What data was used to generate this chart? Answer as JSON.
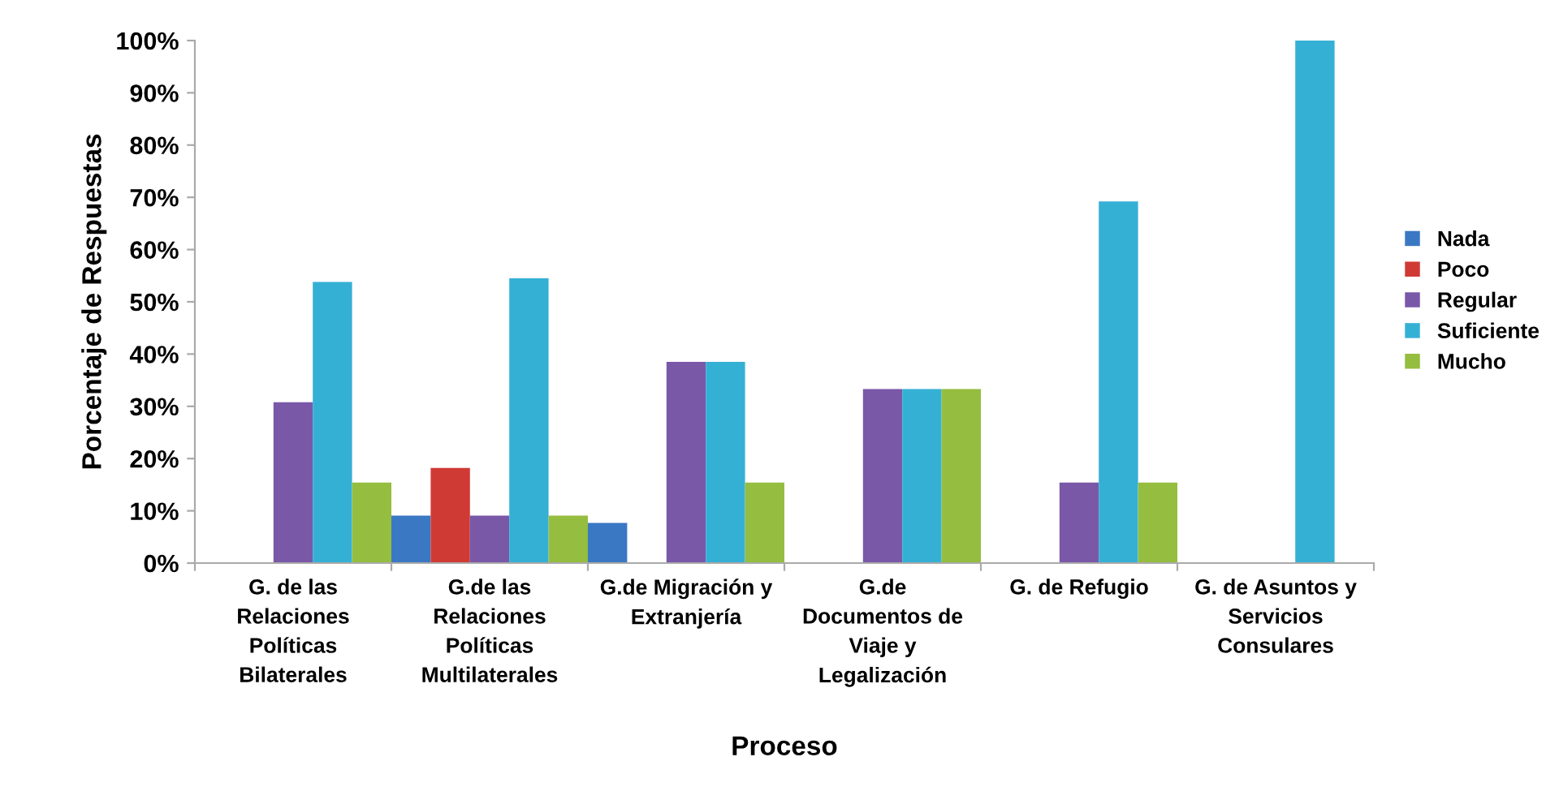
{
  "chart_data": {
    "type": "bar",
    "xlabel": "Proceso",
    "ylabel": "Porcentaje de Respuestas",
    "categories": [
      "G. de las Relaciones Políticas Bilaterales",
      "G.de las Relaciones Políticas Multilaterales",
      "G.de Migración y Extranjería",
      "G.de Documentos de Viaje y Legalización",
      "G. de Refugio",
      "G. de Asuntos y Servicios Consulares"
    ],
    "series": [
      {
        "name": "Nada",
        "color": "#3a78c3",
        "values": [
          0,
          9.1,
          7.7,
          0,
          0,
          0
        ]
      },
      {
        "name": "Poco",
        "color": "#d03a35",
        "values": [
          0,
          18.2,
          0,
          0,
          0,
          0
        ]
      },
      {
        "name": "Regular",
        "color": "#7a58a8",
        "values": [
          30.8,
          9.1,
          38.5,
          33.3,
          15.4,
          0
        ]
      },
      {
        "name": "Suficiente",
        "color": "#35b0d5",
        "values": [
          53.8,
          54.5,
          38.5,
          33.3,
          69.2,
          100
        ]
      },
      {
        "name": "Mucho",
        "color": "#95bd3f",
        "values": [
          15.4,
          9.1,
          15.4,
          33.3,
          15.4,
          0
        ]
      }
    ],
    "ylim": [
      0,
      100
    ],
    "yticks": [
      {
        "value": 0,
        "label": "0%"
      },
      {
        "value": 10,
        "label": "10%"
      },
      {
        "value": 20,
        "label": "20%"
      },
      {
        "value": 30,
        "label": "30%"
      },
      {
        "value": 40,
        "label": "40%"
      },
      {
        "value": 50,
        "label": "50%"
      },
      {
        "value": 60,
        "label": "60%"
      },
      {
        "value": 70,
        "label": "70%"
      },
      {
        "value": 80,
        "label": "80%"
      },
      {
        "value": 90,
        "label": "90%"
      },
      {
        "value": 100,
        "label": "100%"
      }
    ],
    "legend": "right"
  }
}
